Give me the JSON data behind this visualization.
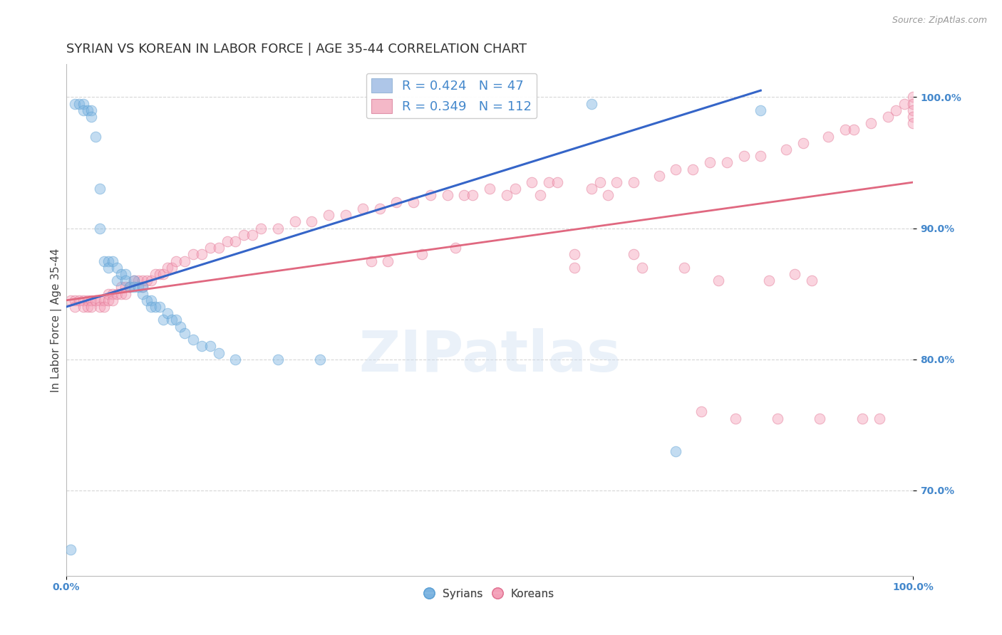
{
  "title": "SYRIAN VS KOREAN IN LABOR FORCE | AGE 35-44 CORRELATION CHART",
  "source_text": "Source: ZipAtlas.com",
  "ylabel": "In Labor Force | Age 35-44",
  "xlim": [
    0.0,
    1.0
  ],
  "ylim": [
    0.635,
    1.025
  ],
  "yticks": [
    0.7,
    0.8,
    0.9,
    1.0
  ],
  "ytick_labels": [
    "70.0%",
    "80.0%",
    "90.0%",
    "100.0%"
  ],
  "xticks": [
    0.0,
    1.0
  ],
  "xtick_labels": [
    "0.0%",
    "100.0%"
  ],
  "watermark": "ZIPatlas",
  "legend_items": [
    {
      "label": "R = 0.424   N = 47",
      "color": "#aec6e8"
    },
    {
      "label": "R = 0.349   N = 112",
      "color": "#f4b8c8"
    }
  ],
  "legend_bottom": [
    "Syrians",
    "Koreans"
  ],
  "syrian_color": "#7ab3e0",
  "korean_color": "#f4a0b8",
  "syrian_edge": "#5a9fd4",
  "korean_edge": "#e07090",
  "blue_line_color": "#3565c8",
  "pink_line_color": "#e06880",
  "syrian_points_x": [
    0.005,
    0.01,
    0.015,
    0.02,
    0.02,
    0.025,
    0.03,
    0.03,
    0.035,
    0.04,
    0.04,
    0.045,
    0.05,
    0.05,
    0.055,
    0.06,
    0.06,
    0.065,
    0.07,
    0.07,
    0.075,
    0.08,
    0.08,
    0.085,
    0.09,
    0.09,
    0.095,
    0.1,
    0.1,
    0.105,
    0.11,
    0.115,
    0.12,
    0.125,
    0.13,
    0.135,
    0.14,
    0.15,
    0.16,
    0.17,
    0.18,
    0.2,
    0.25,
    0.3,
    0.62,
    0.72,
    0.82
  ],
  "syrian_points_y": [
    0.655,
    0.995,
    0.995,
    0.995,
    0.99,
    0.99,
    0.99,
    0.985,
    0.97,
    0.93,
    0.9,
    0.875,
    0.875,
    0.87,
    0.875,
    0.87,
    0.86,
    0.865,
    0.865,
    0.86,
    0.855,
    0.86,
    0.855,
    0.855,
    0.855,
    0.85,
    0.845,
    0.845,
    0.84,
    0.84,
    0.84,
    0.83,
    0.835,
    0.83,
    0.83,
    0.825,
    0.82,
    0.815,
    0.81,
    0.81,
    0.805,
    0.8,
    0.8,
    0.8,
    0.995,
    0.73,
    0.99
  ],
  "korean_points_x": [
    0.005,
    0.01,
    0.01,
    0.015,
    0.02,
    0.02,
    0.025,
    0.025,
    0.03,
    0.03,
    0.035,
    0.04,
    0.04,
    0.045,
    0.045,
    0.05,
    0.05,
    0.055,
    0.055,
    0.06,
    0.065,
    0.065,
    0.07,
    0.07,
    0.075,
    0.08,
    0.085,
    0.09,
    0.09,
    0.095,
    0.1,
    0.105,
    0.11,
    0.115,
    0.12,
    0.125,
    0.13,
    0.14,
    0.15,
    0.16,
    0.17,
    0.18,
    0.19,
    0.2,
    0.21,
    0.22,
    0.23,
    0.25,
    0.27,
    0.29,
    0.31,
    0.33,
    0.35,
    0.37,
    0.39,
    0.41,
    0.43,
    0.45,
    0.47,
    0.5,
    0.53,
    0.55,
    0.57,
    0.58,
    0.6,
    0.62,
    0.63,
    0.65,
    0.67,
    0.7,
    0.72,
    0.74,
    0.76,
    0.78,
    0.8,
    0.82,
    0.85,
    0.87,
    0.9,
    0.92,
    0.93,
    0.95,
    0.97,
    0.98,
    0.99,
    1.0,
    1.0,
    1.0,
    1.0,
    1.0,
    0.48,
    0.52,
    0.56,
    0.6,
    0.64,
    0.67,
    0.38,
    0.42,
    0.46,
    0.36,
    0.68,
    0.73,
    0.77,
    0.83,
    0.86,
    0.88,
    0.75,
    0.79,
    0.84,
    0.89,
    0.94,
    0.96
  ],
  "korean_points_y": [
    0.845,
    0.845,
    0.84,
    0.845,
    0.845,
    0.84,
    0.845,
    0.84,
    0.845,
    0.84,
    0.845,
    0.845,
    0.84,
    0.845,
    0.84,
    0.85,
    0.845,
    0.85,
    0.845,
    0.85,
    0.855,
    0.85,
    0.855,
    0.85,
    0.855,
    0.86,
    0.86,
    0.86,
    0.855,
    0.86,
    0.86,
    0.865,
    0.865,
    0.865,
    0.87,
    0.87,
    0.875,
    0.875,
    0.88,
    0.88,
    0.885,
    0.885,
    0.89,
    0.89,
    0.895,
    0.895,
    0.9,
    0.9,
    0.905,
    0.905,
    0.91,
    0.91,
    0.915,
    0.915,
    0.92,
    0.92,
    0.925,
    0.925,
    0.925,
    0.93,
    0.93,
    0.935,
    0.935,
    0.935,
    0.87,
    0.93,
    0.935,
    0.935,
    0.935,
    0.94,
    0.945,
    0.945,
    0.95,
    0.95,
    0.955,
    0.955,
    0.96,
    0.965,
    0.97,
    0.975,
    0.975,
    0.98,
    0.985,
    0.99,
    0.995,
    1.0,
    0.995,
    0.99,
    0.985,
    0.98,
    0.925,
    0.925,
    0.925,
    0.88,
    0.925,
    0.88,
    0.875,
    0.88,
    0.885,
    0.875,
    0.87,
    0.87,
    0.86,
    0.86,
    0.865,
    0.86,
    0.76,
    0.755,
    0.755,
    0.755,
    0.755,
    0.755
  ],
  "blue_line_x": [
    0.0,
    0.82
  ],
  "blue_line_y": [
    0.84,
    1.005
  ],
  "pink_line_x": [
    0.0,
    1.0
  ],
  "pink_line_y": [
    0.845,
    0.935
  ],
  "background_color": "#ffffff",
  "grid_color": "#cccccc",
  "title_fontsize": 13,
  "axis_label_fontsize": 11,
  "tick_fontsize": 10,
  "tick_color": "#4488cc",
  "marker_size": 110,
  "marker_alpha": 0.45
}
